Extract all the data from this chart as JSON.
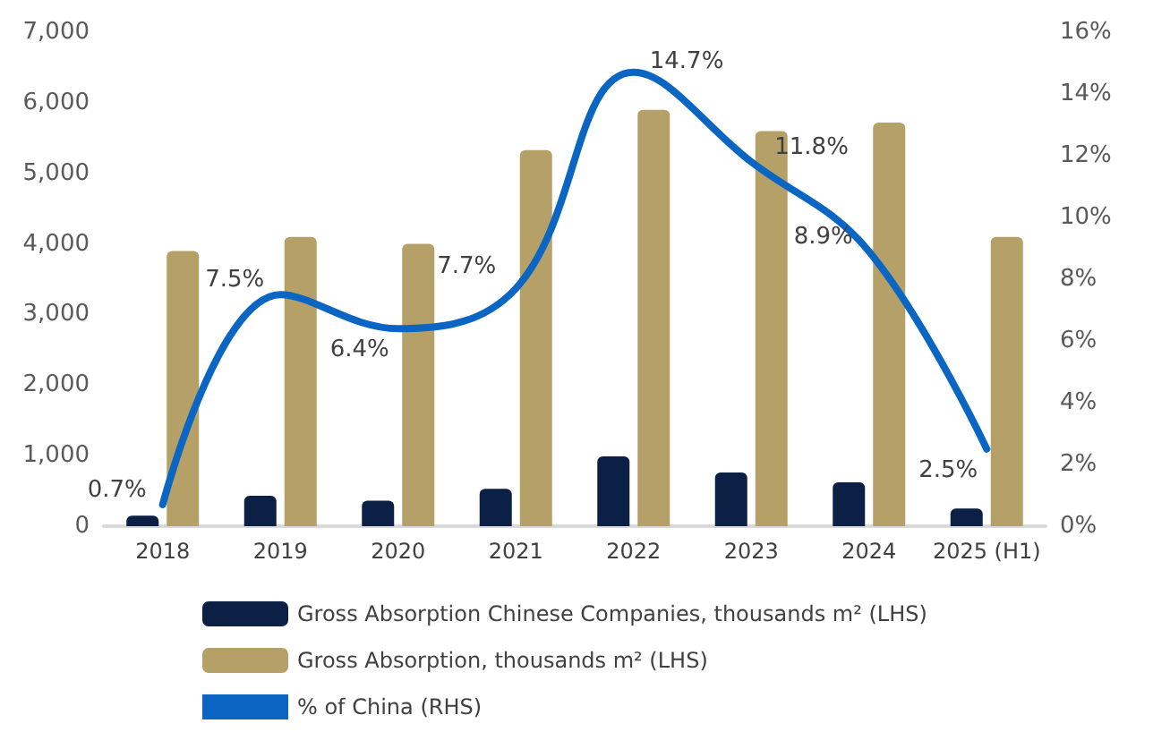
{
  "chart_data": {
    "type": "bar",
    "categories": [
      "2018",
      "2019",
      "2020",
      "2021",
      "2022",
      "2023",
      "2024",
      "2025 (H1)"
    ],
    "series": [
      {
        "name": "Gross Absorption Chinese Companies, thousands m² (LHS)",
        "color": "#0c1f45",
        "values": [
          150,
          430,
          360,
          530,
          990,
          760,
          620,
          250
        ]
      },
      {
        "name": "Gross Absorption, thousands m² (LHS)",
        "color": "#b5a068",
        "values": [
          3900,
          4100,
          4000,
          5330,
          5900,
          5600,
          5720,
          4100
        ]
      },
      {
        "name": "% of China (RHS)",
        "type": "line",
        "axis": "y2",
        "color": "#0a66c2",
        "values": [
          0.7,
          7.5,
          6.4,
          7.7,
          14.7,
          11.8,
          8.9,
          2.5
        ],
        "value_labels": [
          "0.7%",
          "7.5%",
          "6.4%",
          "7.7%",
          "14.7%",
          "11.8%",
          "8.9%",
          "2.5%"
        ]
      }
    ],
    "ylim": [
      0,
      7000
    ],
    "yticks": [
      {
        "value": 0,
        "label": "0"
      },
      {
        "value": 1000,
        "label": "1,000"
      },
      {
        "value": 2000,
        "label": "2,000"
      },
      {
        "value": 3000,
        "label": "3,000"
      },
      {
        "value": 4000,
        "label": "4,000"
      },
      {
        "value": 5000,
        "label": "5,000"
      },
      {
        "value": 6000,
        "label": "6,000"
      },
      {
        "value": 7000,
        "label": "7,000"
      }
    ],
    "y2lim": [
      0,
      16
    ],
    "y2ticks": [
      {
        "value": 0,
        "label": "0%"
      },
      {
        "value": 2,
        "label": "2%"
      },
      {
        "value": 4,
        "label": "4%"
      },
      {
        "value": 6,
        "label": "6%"
      },
      {
        "value": 8,
        "label": "8%"
      },
      {
        "value": 10,
        "label": "10%"
      },
      {
        "value": 12,
        "label": "12%"
      },
      {
        "value": 14,
        "label": "14%"
      },
      {
        "value": 16,
        "label": "16%"
      }
    ],
    "grid": false,
    "legend": "bottom",
    "marker": "none",
    "line_style": "solid"
  }
}
